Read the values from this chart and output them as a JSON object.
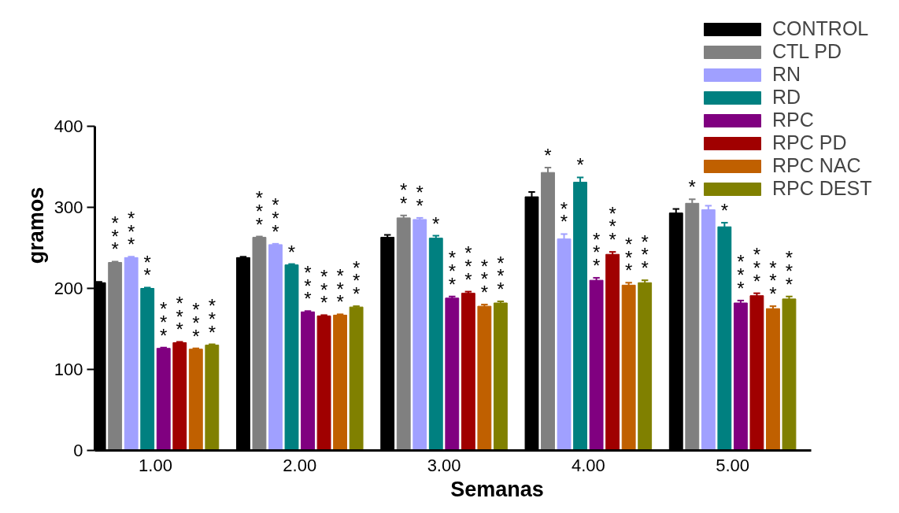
{
  "chart_data": {
    "type": "bar",
    "xlabel": "Semanas",
    "ylabel": "gramos",
    "categories": [
      "1.00",
      "2.00",
      "3.00",
      "4.00",
      "5.00"
    ],
    "ylim": [
      0,
      400
    ],
    "yticks": [
      0,
      100,
      200,
      300,
      400
    ],
    "grid": false,
    "legend": "top right",
    "series": [
      {
        "name": "CONTROL",
        "color": "#000000",
        "values": [
          207,
          238,
          263,
          313,
          293
        ],
        "errors": [
          1,
          1,
          3,
          6,
          5
        ],
        "value_labels": [
          null,
          null,
          null,
          null,
          null
        ]
      },
      {
        "name": "CTL PD",
        "color": "#808080",
        "values": [
          232,
          263,
          287,
          343,
          305
        ],
        "errors": [
          1,
          1,
          3,
          6,
          5
        ],
        "value_labels": [
          "***",
          "***",
          "**",
          "*",
          "*"
        ]
      },
      {
        "name": "RN",
        "color": "#a0a0ff",
        "values": [
          238,
          254,
          285,
          261,
          297
        ],
        "errors": [
          1,
          1,
          2,
          6,
          5
        ],
        "value_labels": [
          "***",
          "***",
          "**",
          "**",
          "*"
        ]
      },
      {
        "name": "RD",
        "color": "#008080",
        "values": [
          200,
          229,
          262,
          331,
          276
        ],
        "errors": [
          1,
          1,
          3,
          6,
          5
        ],
        "value_labels": [
          "**",
          "*",
          "*",
          "*",
          "*"
        ]
      },
      {
        "name": "RPC",
        "color": "#800080",
        "values": [
          126,
          171,
          188,
          210,
          182
        ],
        "errors": [
          1,
          1,
          2,
          3,
          3
        ],
        "value_labels": [
          "***",
          "***",
          "***",
          "***",
          "***"
        ]
      },
      {
        "name": "RPC PD",
        "color": "#a00000",
        "values": [
          133,
          166,
          194,
          242,
          191
        ],
        "errors": [
          1,
          1,
          2,
          3,
          3
        ],
        "value_labels": [
          "***",
          "***",
          "***",
          "***",
          "***"
        ]
      },
      {
        "name": "RPC NAC",
        "color": "#c06000",
        "values": [
          125,
          167,
          178,
          204,
          175
        ],
        "errors": [
          1,
          1,
          2,
          3,
          3
        ],
        "value_labels": [
          "***",
          "***",
          "***",
          "***",
          "***"
        ]
      },
      {
        "name": "RPC DEST",
        "color": "#808000",
        "values": [
          130,
          177,
          182,
          207,
          187
        ],
        "errors": [
          1,
          1,
          2,
          3,
          3
        ],
        "value_labels": [
          "***",
          "***",
          "***",
          "***",
          "***"
        ]
      }
    ]
  }
}
